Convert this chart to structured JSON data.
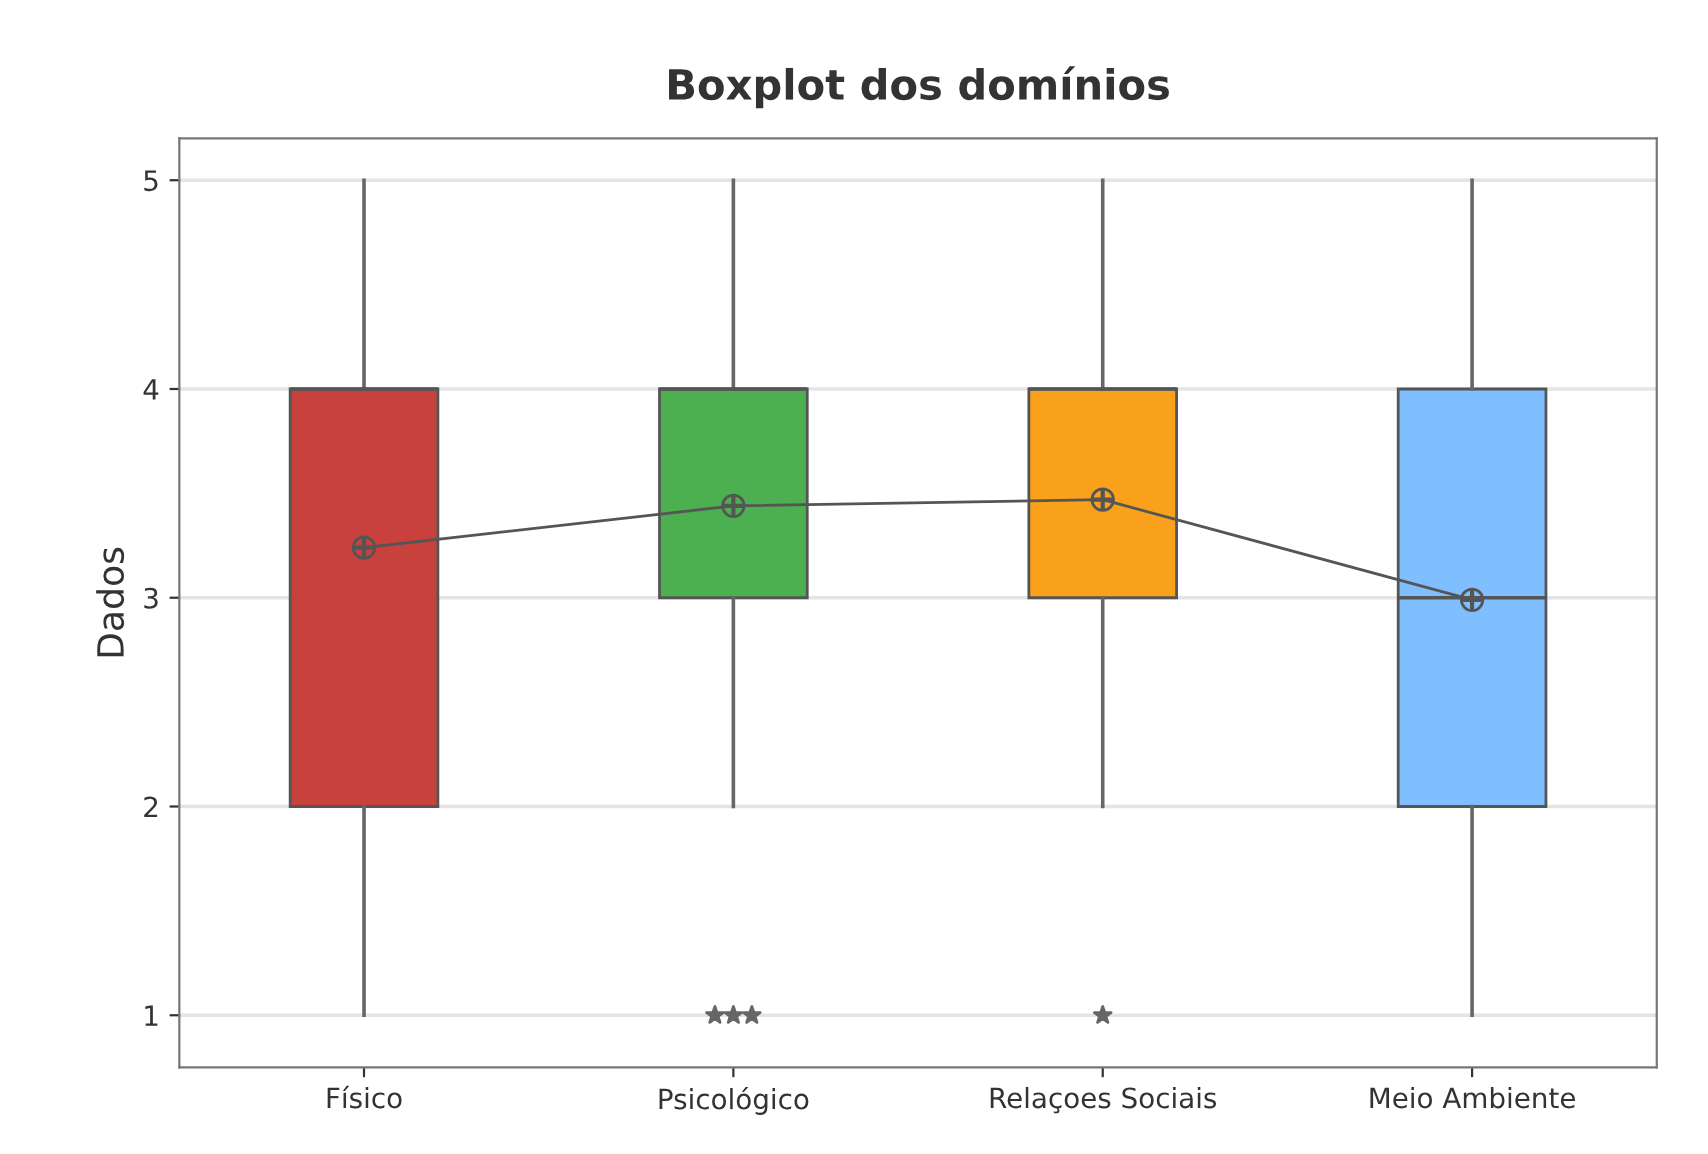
{
  "chart_data": {
    "type": "box",
    "title": "Boxplot dos domínios",
    "ylabel": "Dados",
    "categories": [
      "Físico",
      "Psicológico",
      "Relaçoes Sociais",
      "Meio Ambiente"
    ],
    "colors": [
      "#c8413c",
      "#4caf50",
      "#f9a11b",
      "#80bfff"
    ],
    "boxes": [
      {
        "low": 1,
        "q1": 2,
        "median": 4,
        "q3": 4,
        "high": 5,
        "mean": 3.24
      },
      {
        "low": 2,
        "q1": 3,
        "median": 4,
        "q3": 4,
        "high": 5,
        "mean": 3.44,
        "outliers": [
          1,
          1,
          1
        ]
      },
      {
        "low": 2,
        "q1": 3,
        "median": 4,
        "q3": 4,
        "high": 5,
        "mean": 3.47,
        "outliers": [
          1
        ]
      },
      {
        "low": 1,
        "q1": 2,
        "median": 3,
        "q3": 4,
        "high": 5,
        "mean": 2.99
      }
    ],
    "series": [
      {
        "type": "line",
        "color": "#555555",
        "values": [
          3.24,
          3.44,
          3.47,
          2.99
        ]
      }
    ],
    "ylim": [
      0.75,
      5.2
    ],
    "yticks": [
      1,
      2,
      3,
      4,
      5
    ],
    "grid": "y"
  }
}
